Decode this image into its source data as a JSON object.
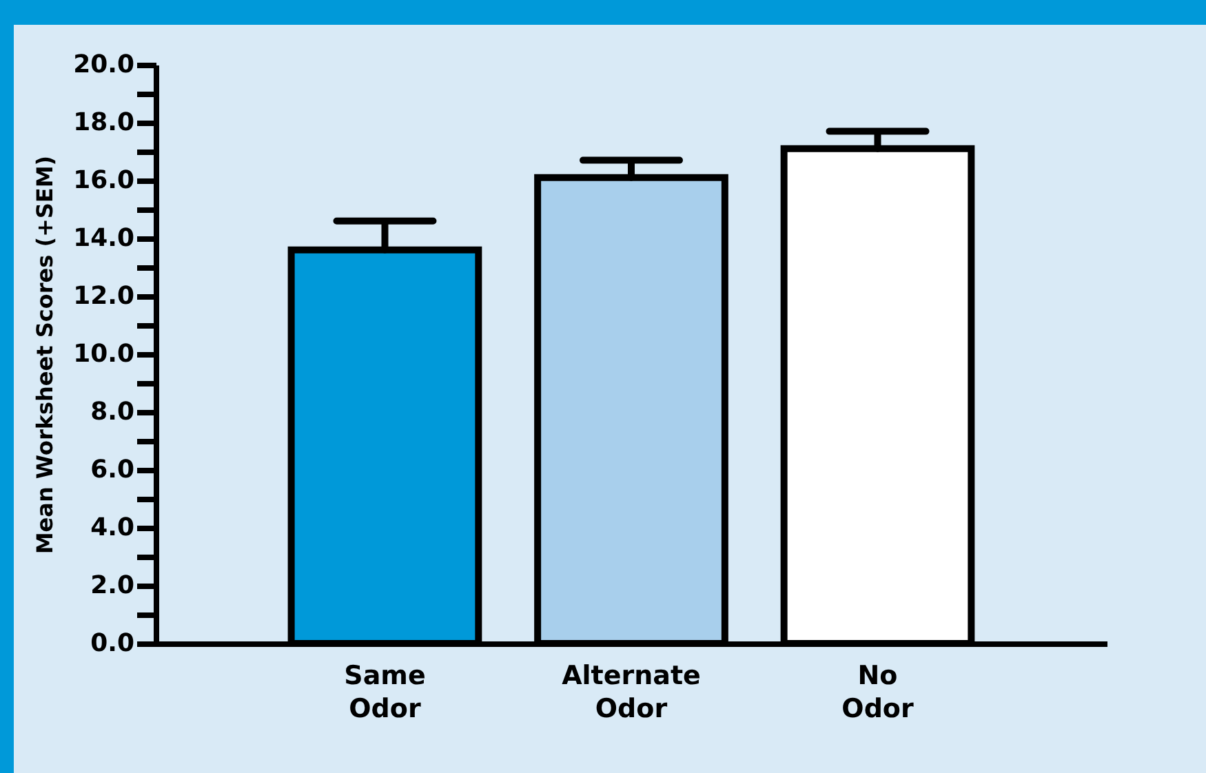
{
  "chart_data": {
    "type": "bar",
    "ylabel": "Mean Worksheet Scores (+SEM)",
    "categories": [
      "Same Odor",
      "Alternate Odor",
      "No Odor"
    ],
    "values": [
      13.6,
      16.1,
      17.1
    ],
    "colors": [
      "#0099d9",
      "#a8cfec",
      "#ffffff"
    ],
    "errors": [
      1.0,
      0.6,
      0.6
    ],
    "ylim": [
      0,
      20
    ],
    "yticks": [
      {
        "value": 0,
        "label": "0.0"
      },
      {
        "value": 1,
        "label": null
      },
      {
        "value": 2,
        "label": "2.0"
      },
      {
        "value": 3,
        "label": null
      },
      {
        "value": 4,
        "label": "4.0"
      },
      {
        "value": 5,
        "label": null
      },
      {
        "value": 6,
        "label": "6.0"
      },
      {
        "value": 7,
        "label": null
      },
      {
        "value": 8,
        "label": "8.0"
      },
      {
        "value": 9,
        "label": null
      },
      {
        "value": 10,
        "label": "10.0"
      },
      {
        "value": 11,
        "label": null
      },
      {
        "value": 12,
        "label": "12.0"
      },
      {
        "value": 13,
        "label": null
      },
      {
        "value": 14,
        "label": "14.0"
      },
      {
        "value": 15,
        "label": null
      },
      {
        "value": 16,
        "label": "16.0"
      },
      {
        "value": 17,
        "label": null
      },
      {
        "value": 18,
        "label": "18.0"
      },
      {
        "value": 19,
        "label": null
      },
      {
        "value": 20,
        "label": "20.0"
      }
    ],
    "grid": false,
    "legend": false
  }
}
